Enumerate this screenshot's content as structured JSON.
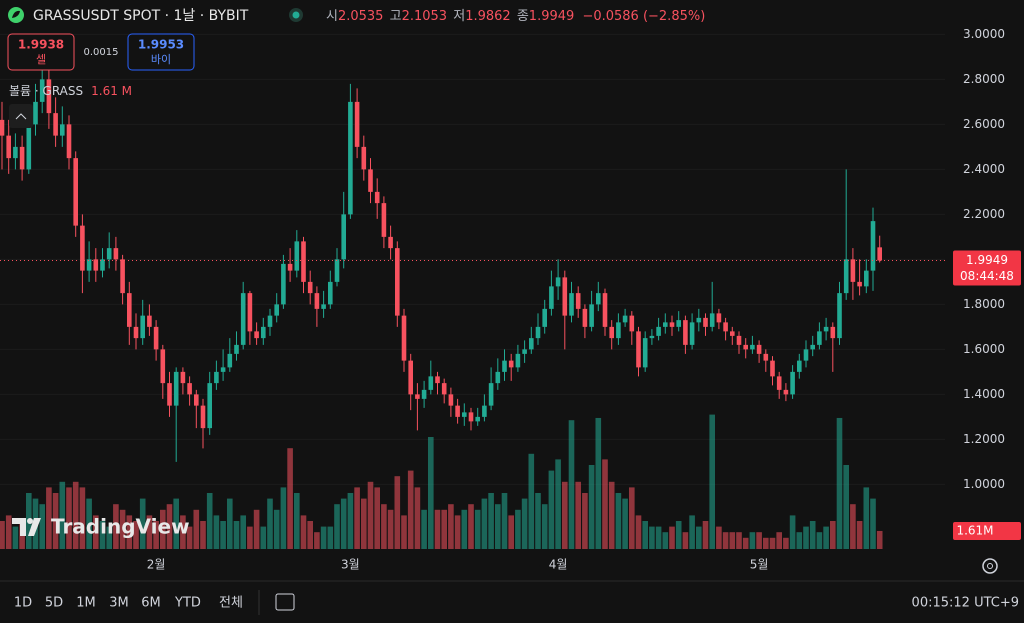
{
  "chart_data": {
    "type": "candlestick",
    "title": "GRASSUSDT SPOT · 1날 · BYBIT",
    "categories": [
      null,
      null,
      null,
      null,
      null,
      null,
      null,
      null,
      null,
      null,
      null,
      null,
      null,
      null,
      null,
      null,
      null,
      null,
      null,
      null,
      null,
      null,
      null,
      "2월",
      null,
      null,
      null,
      null,
      null,
      null,
      null,
      null,
      null,
      null,
      null,
      null,
      null,
      null,
      null,
      null,
      null,
      null,
      null,
      null,
      null,
      null,
      null,
      null,
      null,
      null,
      null,
      null,
      "3월",
      null,
      null,
      null,
      null,
      null,
      null,
      null,
      null,
      null,
      null,
      null,
      null,
      null,
      null,
      null,
      null,
      null,
      null,
      null,
      null,
      null,
      null,
      null,
      null,
      null,
      null,
      null,
      null,
      null,
      null,
      "4월",
      null,
      null,
      null,
      null,
      null,
      null,
      null,
      null,
      null,
      null,
      null,
      null,
      null,
      null,
      null,
      null,
      null,
      null,
      null,
      null,
      null,
      null,
      null,
      null,
      null,
      null,
      null,
      null,
      null,
      "5월",
      null,
      null,
      null,
      null,
      null,
      null,
      null,
      null,
      null,
      null,
      null,
      null,
      null,
      null,
      null,
      null,
      null,
      null
    ],
    "candles": [
      [
        2.62,
        2.7,
        2.4,
        2.55
      ],
      [
        2.55,
        2.62,
        2.38,
        2.45
      ],
      [
        2.45,
        2.56,
        2.4,
        2.5
      ],
      [
        2.5,
        2.55,
        2.35,
        2.4
      ],
      [
        2.4,
        2.66,
        2.38,
        2.6
      ],
      [
        2.6,
        2.78,
        2.55,
        2.7
      ],
      [
        2.7,
        2.86,
        2.65,
        2.8
      ],
      [
        2.8,
        2.84,
        2.58,
        2.65
      ],
      [
        2.65,
        2.72,
        2.5,
        2.55
      ],
      [
        2.55,
        2.68,
        2.5,
        2.6
      ],
      [
        2.6,
        2.64,
        2.4,
        2.45
      ],
      [
        2.45,
        2.48,
        2.1,
        2.15
      ],
      [
        2.15,
        2.2,
        1.85,
        1.95
      ],
      [
        1.95,
        2.08,
        1.9,
        2.0
      ],
      [
        2.0,
        2.05,
        1.9,
        1.95
      ],
      [
        1.95,
        2.05,
        1.92,
        2.0
      ],
      [
        2.0,
        2.12,
        1.96,
        2.05
      ],
      [
        2.05,
        2.1,
        1.95,
        2.0
      ],
      [
        2.0,
        2.02,
        1.8,
        1.85
      ],
      [
        1.85,
        1.9,
        1.62,
        1.7
      ],
      [
        1.7,
        1.76,
        1.6,
        1.65
      ],
      [
        1.65,
        1.82,
        1.62,
        1.75
      ],
      [
        1.75,
        1.8,
        1.66,
        1.7
      ],
      [
        1.7,
        1.73,
        1.55,
        1.6
      ],
      [
        1.6,
        1.62,
        1.38,
        1.45
      ],
      [
        1.45,
        1.5,
        1.3,
        1.35
      ],
      [
        1.35,
        1.52,
        1.1,
        1.5
      ],
      [
        1.5,
        1.52,
        1.4,
        1.45
      ],
      [
        1.45,
        1.48,
        1.35,
        1.4
      ],
      [
        1.4,
        1.42,
        1.25,
        1.35
      ],
      [
        1.35,
        1.38,
        1.16,
        1.25
      ],
      [
        1.25,
        1.5,
        1.22,
        1.45
      ],
      [
        1.45,
        1.55,
        1.42,
        1.5
      ],
      [
        1.5,
        1.6,
        1.46,
        1.52
      ],
      [
        1.52,
        1.65,
        1.5,
        1.58
      ],
      [
        1.58,
        1.68,
        1.55,
        1.62
      ],
      [
        1.62,
        1.9,
        1.6,
        1.85
      ],
      [
        1.85,
        1.86,
        1.62,
        1.68
      ],
      [
        1.68,
        1.72,
        1.62,
        1.65
      ],
      [
        1.65,
        1.74,
        1.62,
        1.7
      ],
      [
        1.7,
        1.78,
        1.66,
        1.75
      ],
      [
        1.75,
        1.85,
        1.72,
        1.8
      ],
      [
        1.8,
        2.02,
        1.78,
        1.98
      ],
      [
        1.98,
        2.05,
        1.9,
        1.95
      ],
      [
        1.95,
        2.13,
        1.92,
        2.08
      ],
      [
        2.08,
        2.1,
        1.85,
        1.9
      ],
      [
        1.9,
        1.95,
        1.8,
        1.85
      ],
      [
        1.85,
        1.88,
        1.7,
        1.78
      ],
      [
        1.78,
        1.86,
        1.74,
        1.8
      ],
      [
        1.8,
        1.95,
        1.78,
        1.9
      ],
      [
        1.9,
        2.05,
        1.88,
        2.0
      ],
      [
        2.0,
        2.3,
        1.96,
        2.2
      ],
      [
        2.2,
        2.78,
        2.18,
        2.7
      ],
      [
        2.7,
        2.76,
        2.45,
        2.5
      ],
      [
        2.5,
        2.55,
        2.35,
        2.4
      ],
      [
        2.4,
        2.45,
        2.25,
        2.3
      ],
      [
        2.3,
        2.36,
        2.18,
        2.25
      ],
      [
        2.25,
        2.28,
        2.05,
        2.1
      ],
      [
        2.1,
        2.15,
        2.0,
        2.05
      ],
      [
        2.05,
        2.08,
        1.7,
        1.75
      ],
      [
        1.75,
        1.78,
        1.5,
        1.55
      ],
      [
        1.55,
        1.58,
        1.33,
        1.4
      ],
      [
        1.4,
        1.45,
        1.24,
        1.38
      ],
      [
        1.38,
        1.46,
        1.34,
        1.42
      ],
      [
        1.42,
        1.55,
        1.4,
        1.48
      ],
      [
        1.48,
        1.5,
        1.4,
        1.45
      ],
      [
        1.45,
        1.47,
        1.36,
        1.4
      ],
      [
        1.4,
        1.43,
        1.3,
        1.35
      ],
      [
        1.35,
        1.38,
        1.27,
        1.3
      ],
      [
        1.3,
        1.36,
        1.26,
        1.32
      ],
      [
        1.32,
        1.34,
        1.24,
        1.28
      ],
      [
        1.28,
        1.34,
        1.26,
        1.3
      ],
      [
        1.3,
        1.4,
        1.28,
        1.35
      ],
      [
        1.35,
        1.52,
        1.33,
        1.45
      ],
      [
        1.45,
        1.56,
        1.42,
        1.5
      ],
      [
        1.5,
        1.6,
        1.46,
        1.55
      ],
      [
        1.55,
        1.58,
        1.46,
        1.52
      ],
      [
        1.52,
        1.62,
        1.5,
        1.58
      ],
      [
        1.58,
        1.64,
        1.54,
        1.6
      ],
      [
        1.6,
        1.7,
        1.58,
        1.65
      ],
      [
        1.65,
        1.76,
        1.62,
        1.7
      ],
      [
        1.7,
        1.82,
        1.67,
        1.78
      ],
      [
        1.78,
        1.95,
        1.75,
        1.88
      ],
      [
        1.88,
        2.0,
        1.82,
        1.92
      ],
      [
        1.92,
        1.95,
        1.6,
        1.75
      ],
      [
        1.75,
        1.9,
        1.72,
        1.85
      ],
      [
        1.85,
        1.88,
        1.74,
        1.78
      ],
      [
        1.78,
        1.8,
        1.65,
        1.7
      ],
      [
        1.7,
        1.86,
        1.68,
        1.8
      ],
      [
        1.8,
        1.9,
        1.77,
        1.85
      ],
      [
        1.85,
        1.87,
        1.66,
        1.7
      ],
      [
        1.7,
        1.73,
        1.6,
        1.65
      ],
      [
        1.65,
        1.76,
        1.62,
        1.72
      ],
      [
        1.72,
        1.78,
        1.7,
        1.75
      ],
      [
        1.75,
        1.77,
        1.62,
        1.68
      ],
      [
        1.68,
        1.7,
        1.48,
        1.52
      ],
      [
        1.52,
        1.68,
        1.5,
        1.65
      ],
      [
        1.65,
        1.69,
        1.62,
        1.66
      ],
      [
        1.66,
        1.74,
        1.64,
        1.7
      ],
      [
        1.7,
        1.76,
        1.67,
        1.72
      ],
      [
        1.72,
        1.75,
        1.66,
        1.7
      ],
      [
        1.7,
        1.77,
        1.68,
        1.73
      ],
      [
        1.73,
        1.75,
        1.58,
        1.62
      ],
      [
        1.62,
        1.76,
        1.6,
        1.72
      ],
      [
        1.72,
        1.78,
        1.68,
        1.74
      ],
      [
        1.74,
        1.76,
        1.66,
        1.7
      ],
      [
        1.7,
        1.9,
        1.68,
        1.76
      ],
      [
        1.76,
        1.78,
        1.69,
        1.72
      ],
      [
        1.72,
        1.74,
        1.64,
        1.68
      ],
      [
        1.68,
        1.7,
        1.62,
        1.66
      ],
      [
        1.66,
        1.68,
        1.58,
        1.62
      ],
      [
        1.62,
        1.65,
        1.56,
        1.6
      ],
      [
        1.6,
        1.66,
        1.58,
        1.62
      ],
      [
        1.62,
        1.64,
        1.54,
        1.58
      ],
      [
        1.58,
        1.6,
        1.5,
        1.55
      ],
      [
        1.55,
        1.57,
        1.44,
        1.48
      ],
      [
        1.48,
        1.5,
        1.38,
        1.42
      ],
      [
        1.42,
        1.45,
        1.37,
        1.4
      ],
      [
        1.4,
        1.53,
        1.38,
        1.5
      ],
      [
        1.5,
        1.58,
        1.47,
        1.55
      ],
      [
        1.55,
        1.64,
        1.52,
        1.6
      ],
      [
        1.6,
        1.66,
        1.57,
        1.62
      ],
      [
        1.62,
        1.72,
        1.6,
        1.68
      ],
      [
        1.68,
        1.74,
        1.64,
        1.7
      ],
      [
        1.7,
        1.72,
        1.5,
        1.65
      ],
      [
        1.65,
        1.9,
        1.62,
        1.85
      ],
      [
        1.85,
        2.4,
        1.82,
        2.0
      ],
      [
        2.0,
        2.05,
        1.82,
        1.9
      ],
      [
        1.9,
        2.0,
        1.84,
        1.88
      ],
      [
        1.88,
        2.0,
        1.85,
        1.95
      ],
      [
        1.95,
        2.23,
        1.86,
        2.17
      ],
      [
        2.0535,
        2.1053,
        1.9862,
        1.9949
      ]
    ],
    "volumes": [
      2.5,
      3.0,
      2.0,
      2.5,
      5.0,
      4.5,
      4.0,
      5.5,
      5.0,
      6.0,
      5.5,
      6.0,
      5.5,
      4.5,
      3.0,
      2.5,
      2.0,
      4.0,
      3.5,
      3.0,
      2.5,
      4.5,
      3.0,
      2.5,
      3.5,
      4.0,
      4.5,
      3.0,
      2.0,
      3.5,
      2.5,
      5.0,
      3.0,
      2.5,
      4.5,
      2.5,
      3.0,
      2.0,
      3.5,
      2.0,
      4.5,
      3.5,
      5.5,
      9.0,
      5.0,
      3.0,
      2.5,
      1.5,
      2.0,
      2.0,
      4.0,
      4.5,
      5.0,
      5.5,
      4.5,
      6.0,
      5.5,
      4.0,
      3.5,
      6.5,
      3.0,
      7.0,
      5.5,
      3.5,
      10.0,
      3.5,
      3.5,
      4.0,
      3.0,
      3.5,
      4.0,
      3.5,
      4.5,
      5.0,
      4.0,
      5.0,
      3.0,
      3.5,
      4.5,
      8.5,
      5.0,
      4.0,
      7.0,
      8.0,
      6.0,
      11.5,
      6.0,
      5.0,
      7.5,
      11.7,
      8.0,
      6.0,
      5.0,
      4.5,
      5.5,
      3.0,
      2.5,
      2.0,
      2.0,
      1.5,
      2.0,
      2.5,
      1.5,
      3.0,
      2.0,
      2.5,
      12.0,
      2.0,
      1.5,
      1.5,
      1.5,
      1.0,
      1.5,
      1.5,
      1.0,
      1.0,
      1.5,
      1.0,
      3.0,
      1.5,
      2.0,
      2.5,
      1.5,
      2.0,
      2.5,
      11.7,
      7.5,
      4.0,
      2.5,
      5.5,
      4.5,
      1.61
    ],
    "up_color": "#22ab94",
    "down_color": "#f7525f",
    "ylim": [
      0.575,
      3.055
    ],
    "yticks": [
      {
        "value": 1,
        "label": "1.0000"
      },
      {
        "value": 1.2,
        "label": "1.2000"
      },
      {
        "value": 1.4,
        "label": "1.4000"
      },
      {
        "value": 1.6,
        "label": "1.6000"
      },
      {
        "value": 1.8,
        "label": "1.8000"
      },
      {
        "value": 2,
        "label": "2.0000"
      },
      {
        "value": 2.2,
        "label": "2.2000"
      },
      {
        "value": 2.4,
        "label": "2.4000"
      },
      {
        "value": 2.6,
        "label": "2.6000"
      },
      {
        "value": 2.8,
        "label": "2.8000"
      },
      {
        "value": 3,
        "label": "3.0000"
      }
    ],
    "grid": true,
    "volume_axis_label": "1.61M",
    "countdown": "08:44:48"
  },
  "header": {
    "open_label": "시",
    "high_label": "고",
    "low_label": "저",
    "close_label": "종",
    "change": "−0.0586 (−2.85%)",
    "volume_label": "볼륨 · GRASS",
    "volume_value": "1.61 M"
  },
  "trade": {
    "sell_price": "1.9938",
    "sell": "셀",
    "spread": "0.0015",
    "buy_price": "1.9953",
    "buy": "바이"
  },
  "logo": "TradingView",
  "toolbar": {
    "ranges": [
      "1D",
      "5D",
      "1M",
      "3M",
      "6M",
      "YTD",
      "전체"
    ],
    "clock": "00:15:12 UTC+9"
  }
}
